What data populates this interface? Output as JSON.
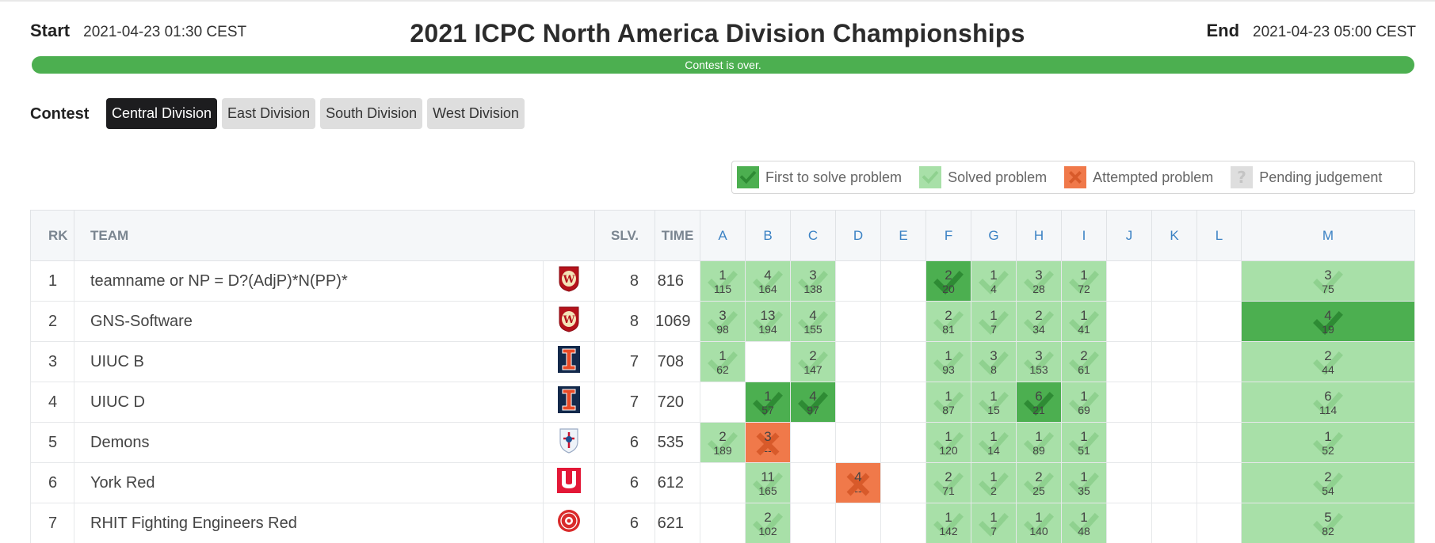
{
  "header": {
    "start_label": "Start",
    "start_value": "2021-04-23 01:30 CEST",
    "end_label": "End",
    "end_value": "2021-04-23 05:00 CEST",
    "title": "2021 ICPC North America Division Championships",
    "progress_text": "Contest is over.",
    "progress_fraction": 1.0
  },
  "contest": {
    "label": "Contest",
    "tabs": [
      {
        "label": "Central Division",
        "active": true
      },
      {
        "label": "East Division",
        "active": false
      },
      {
        "label": "South Division",
        "active": false
      },
      {
        "label": "West Division",
        "active": false
      }
    ]
  },
  "legend": [
    {
      "label": "First to solve problem",
      "state": "first",
      "icon": "check-icon"
    },
    {
      "label": "Solved problem",
      "state": "solved",
      "icon": "check-icon"
    },
    {
      "label": "Attempted problem",
      "state": "attempted",
      "icon": "cross-icon"
    },
    {
      "label": "Pending judgement",
      "state": "pending",
      "icon": "question-icon"
    }
  ],
  "colors": {
    "first": "#4caf50",
    "solved": "#a8e0a8",
    "attempted": "#f0794a",
    "pending": "#dedede",
    "progress": "#4caf50",
    "tab_active": "#1d1d1f",
    "tab_inactive": "#dedede"
  },
  "columns": {
    "rank": "RK",
    "team": "TEAM",
    "solved": "SLV.",
    "time": "TIME",
    "problems": [
      "A",
      "B",
      "C",
      "D",
      "E",
      "F",
      "G",
      "H",
      "I",
      "J",
      "K",
      "L",
      "M"
    ]
  },
  "rows": [
    {
      "rank": "1",
      "team": "teamname or NP = D?(AdjP)*N(PP)*",
      "logo": "wisconsin-logo",
      "solved": "8",
      "time": "816",
      "problems": [
        {
          "s": "solved",
          "a": "1",
          "t": "115"
        },
        {
          "s": "solved",
          "a": "4",
          "t": "164"
        },
        {
          "s": "solved",
          "a": "3",
          "t": "138"
        },
        null,
        null,
        {
          "s": "first",
          "a": "2",
          "t": "20"
        },
        {
          "s": "solved",
          "a": "1",
          "t": "4"
        },
        {
          "s": "solved",
          "a": "3",
          "t": "28"
        },
        {
          "s": "solved",
          "a": "1",
          "t": "72"
        },
        null,
        null,
        null,
        {
          "s": "solved",
          "a": "3",
          "t": "75"
        }
      ]
    },
    {
      "rank": "2",
      "team": "GNS-Software",
      "logo": "wisconsin-logo",
      "solved": "8",
      "time": "1069",
      "problems": [
        {
          "s": "solved",
          "a": "3",
          "t": "98"
        },
        {
          "s": "solved",
          "a": "13",
          "t": "194"
        },
        {
          "s": "solved",
          "a": "4",
          "t": "155"
        },
        null,
        null,
        {
          "s": "solved",
          "a": "2",
          "t": "81"
        },
        {
          "s": "solved",
          "a": "1",
          "t": "7"
        },
        {
          "s": "solved",
          "a": "2",
          "t": "34"
        },
        {
          "s": "solved",
          "a": "1",
          "t": "41"
        },
        null,
        null,
        null,
        {
          "s": "first",
          "a": "4",
          "t": "19"
        }
      ]
    },
    {
      "rank": "3",
      "team": "UIUC B",
      "logo": "illinois-logo",
      "solved": "7",
      "time": "708",
      "problems": [
        {
          "s": "solved",
          "a": "1",
          "t": "62"
        },
        null,
        {
          "s": "solved",
          "a": "2",
          "t": "147"
        },
        null,
        null,
        {
          "s": "solved",
          "a": "1",
          "t": "93"
        },
        {
          "s": "solved",
          "a": "3",
          "t": "8"
        },
        {
          "s": "solved",
          "a": "3",
          "t": "153"
        },
        {
          "s": "solved",
          "a": "2",
          "t": "61"
        },
        null,
        null,
        null,
        {
          "s": "solved",
          "a": "2",
          "t": "44"
        }
      ]
    },
    {
      "rank": "4",
      "team": "UIUC D",
      "logo": "illinois-logo",
      "solved": "7",
      "time": "720",
      "problems": [
        null,
        {
          "s": "first",
          "a": "1",
          "t": "57"
        },
        {
          "s": "first",
          "a": "4",
          "t": "97"
        },
        null,
        null,
        {
          "s": "solved",
          "a": "1",
          "t": "87"
        },
        {
          "s": "solved",
          "a": "1",
          "t": "15"
        },
        {
          "s": "first",
          "a": "6",
          "t": "21"
        },
        {
          "s": "solved",
          "a": "1",
          "t": "69"
        },
        null,
        null,
        null,
        {
          "s": "solved",
          "a": "6",
          "t": "114"
        }
      ]
    },
    {
      "rank": "5",
      "team": "Demons",
      "logo": "depaul-logo",
      "solved": "6",
      "time": "535",
      "problems": [
        {
          "s": "solved",
          "a": "2",
          "t": "189"
        },
        {
          "s": "attempted",
          "a": "3",
          "t": "--"
        },
        null,
        null,
        null,
        {
          "s": "solved",
          "a": "1",
          "t": "120"
        },
        {
          "s": "solved",
          "a": "1",
          "t": "14"
        },
        {
          "s": "solved",
          "a": "1",
          "t": "89"
        },
        {
          "s": "solved",
          "a": "1",
          "t": "51"
        },
        null,
        null,
        null,
        {
          "s": "solved",
          "a": "1",
          "t": "52"
        }
      ]
    },
    {
      "rank": "6",
      "team": "York Red",
      "logo": "york-logo",
      "solved": "6",
      "time": "612",
      "problems": [
        null,
        {
          "s": "solved",
          "a": "11",
          "t": "165"
        },
        null,
        {
          "s": "attempted",
          "a": "4",
          "t": "--"
        },
        null,
        {
          "s": "solved",
          "a": "2",
          "t": "71"
        },
        {
          "s": "solved",
          "a": "1",
          "t": "2"
        },
        {
          "s": "solved",
          "a": "2",
          "t": "25"
        },
        {
          "s": "solved",
          "a": "1",
          "t": "35"
        },
        null,
        null,
        null,
        {
          "s": "solved",
          "a": "2",
          "t": "54"
        }
      ]
    },
    {
      "rank": "7",
      "team": "RHIT Fighting Engineers Red",
      "logo": "rose-hulman-logo",
      "solved": "6",
      "time": "621",
      "problems": [
        null,
        {
          "s": "solved",
          "a": "2",
          "t": "102"
        },
        null,
        null,
        null,
        {
          "s": "solved",
          "a": "1",
          "t": "142"
        },
        {
          "s": "solved",
          "a": "1",
          "t": "7"
        },
        {
          "s": "solved",
          "a": "1",
          "t": "140"
        },
        {
          "s": "solved",
          "a": "1",
          "t": "48"
        },
        null,
        null,
        null,
        {
          "s": "solved",
          "a": "5",
          "t": "82"
        }
      ]
    }
  ]
}
